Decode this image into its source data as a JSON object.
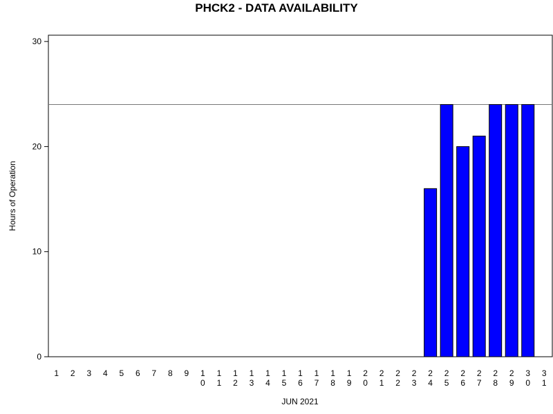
{
  "chart_data": {
    "type": "bar",
    "title": "PHCK2 - DATA AVAILABILITY",
    "x_label": "JUN 2021",
    "y_label": "Hours of Operation",
    "categories": [
      "1",
      "2",
      "3",
      "4",
      "5",
      "6",
      "7",
      "8",
      "9",
      "10",
      "11",
      "12",
      "13",
      "14",
      "15",
      "16",
      "17",
      "18",
      "19",
      "20",
      "21",
      "22",
      "23",
      "24",
      "25",
      "26",
      "27",
      "28",
      "29",
      "30",
      "31"
    ],
    "values": [
      0,
      0,
      0,
      0,
      0,
      0,
      0,
      0,
      0,
      0,
      0,
      0,
      0,
      0,
      0,
      0,
      0,
      0,
      0,
      0,
      0,
      0,
      0,
      16,
      24,
      20,
      21,
      24,
      24,
      24,
      0
    ],
    "color": "#0000ff",
    "reference_line": 24,
    "ylim": [
      0,
      30.6
    ],
    "yticks": [
      0,
      10,
      20,
      30
    ]
  }
}
